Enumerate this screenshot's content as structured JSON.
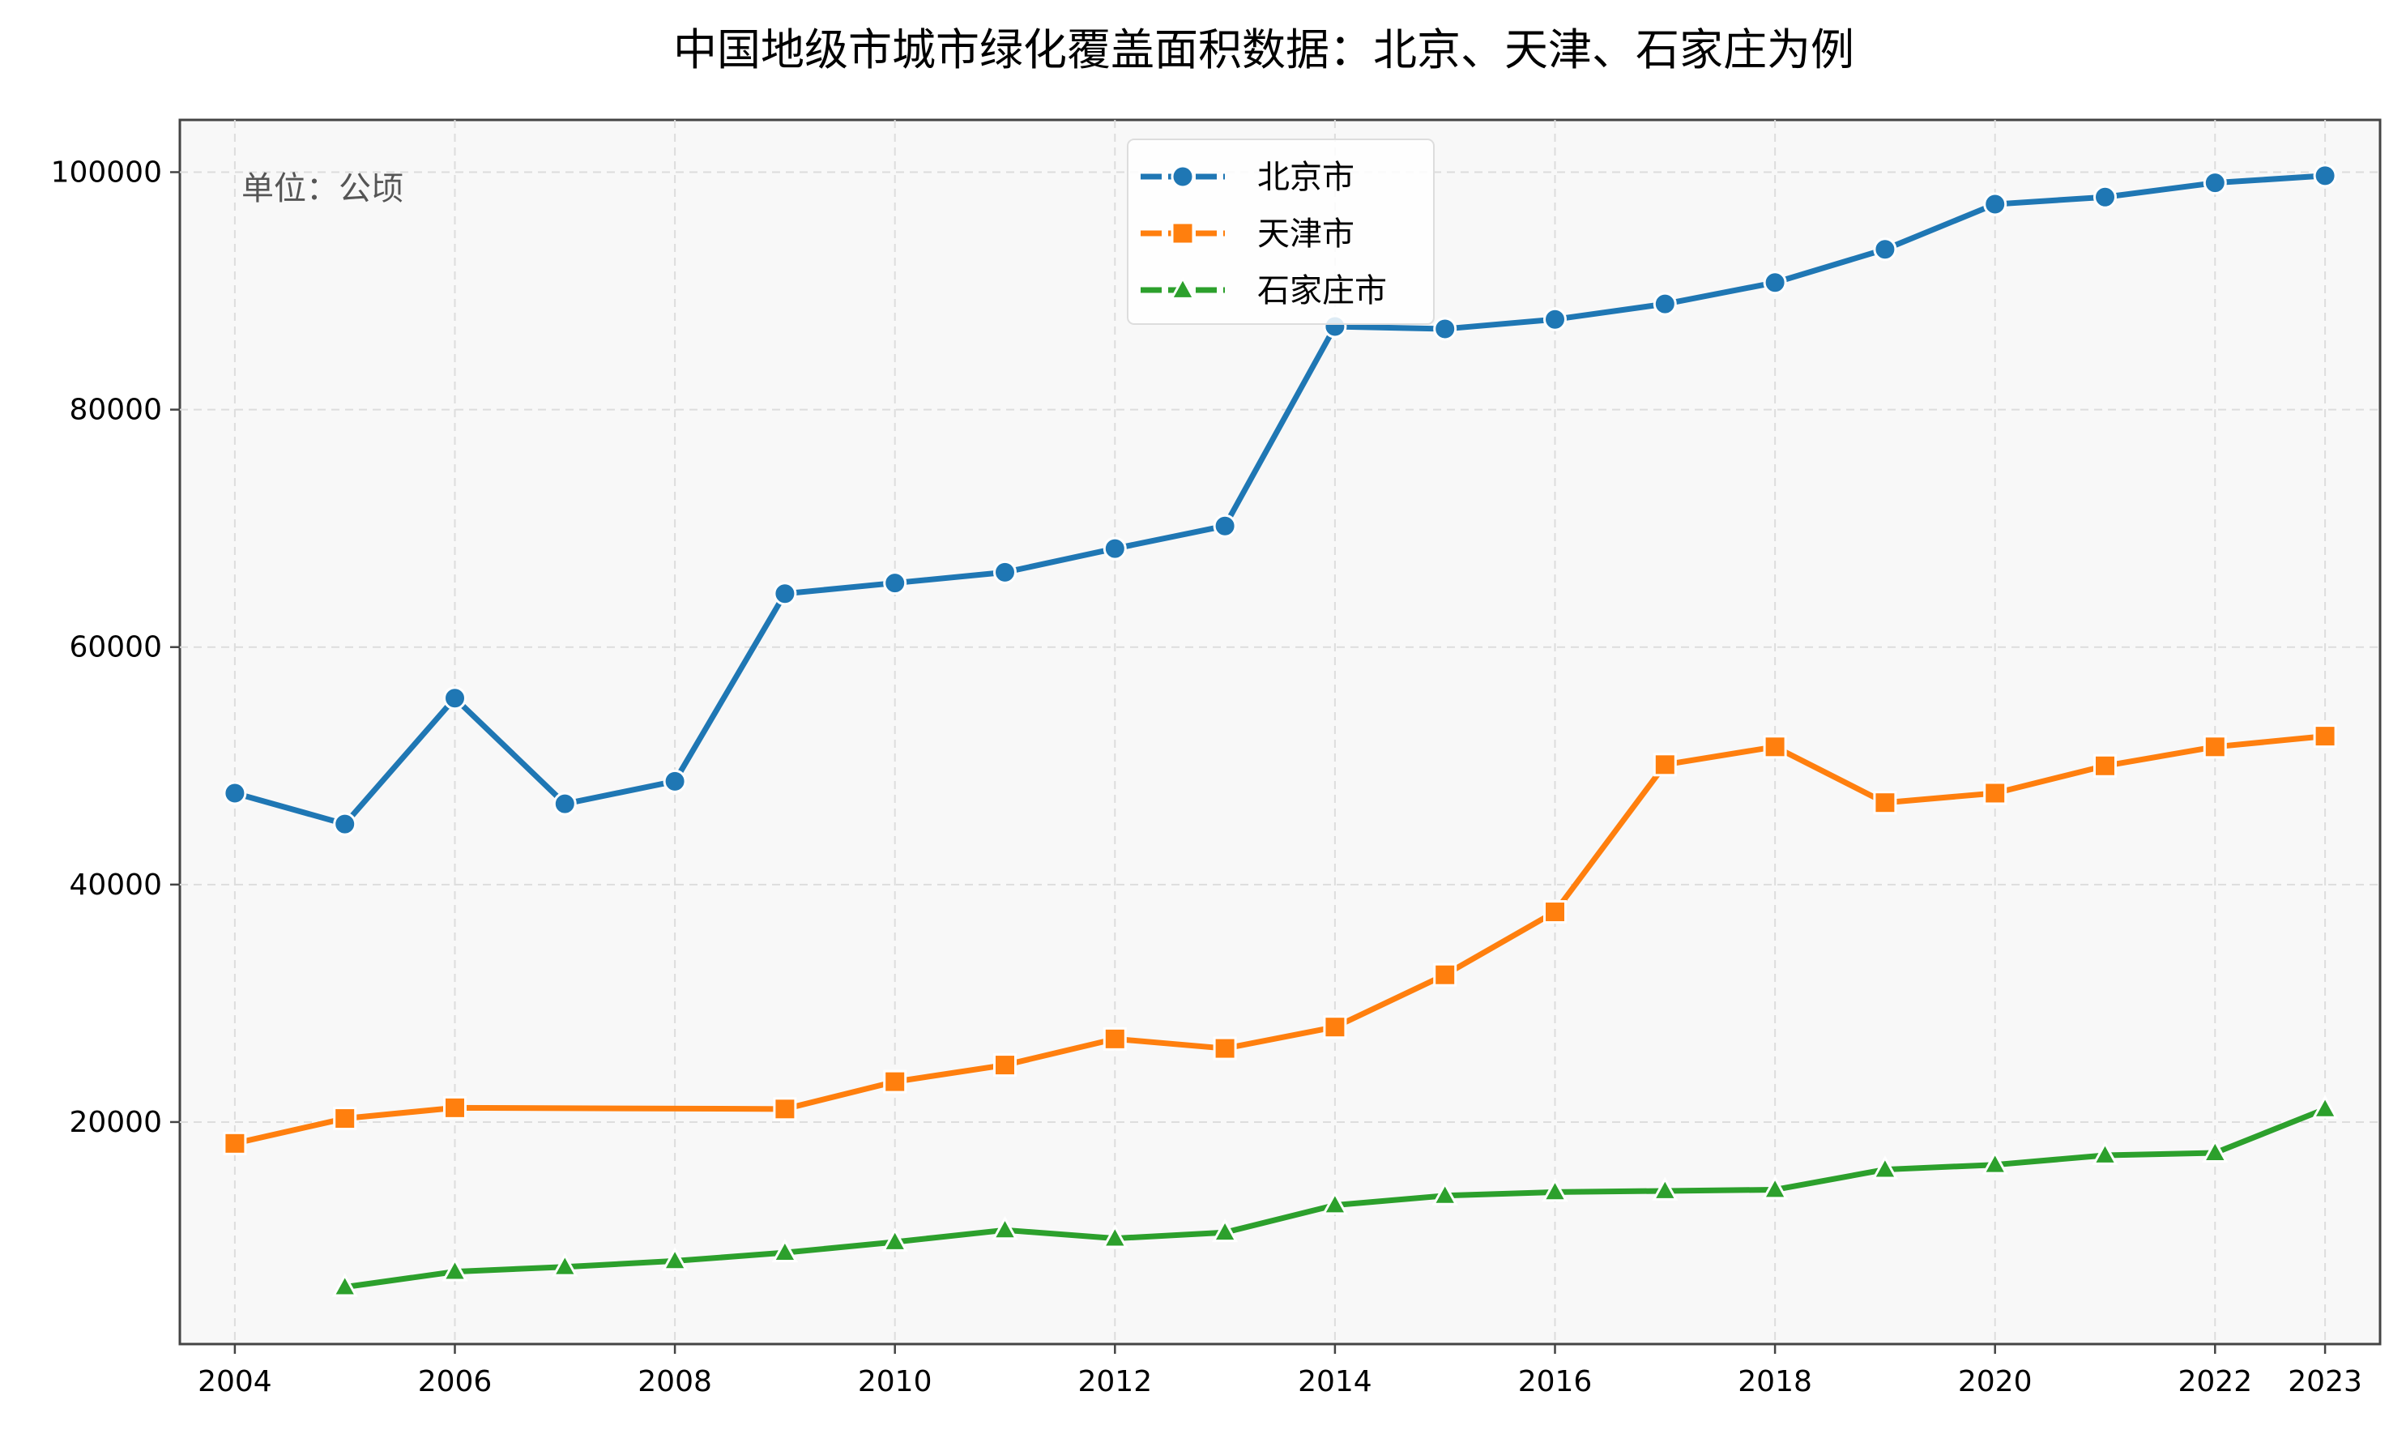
{
  "chart_data": {
    "type": "line",
    "title": "中国地级市城市绿化覆盖面积数据：北京、天津、石家庄为例",
    "annotation": "单位：公顷",
    "xlabel": "",
    "ylabel": "",
    "xlim": [
      2003.5,
      2023.5
    ],
    "ylim": [
      1300,
      104400
    ],
    "x_ticks": [
      2004,
      2006,
      2008,
      2010,
      2012,
      2014,
      2016,
      2018,
      2020,
      2022,
      2023
    ],
    "y_ticks": [
      20000,
      40000,
      60000,
      80000,
      100000
    ],
    "grid": true,
    "legend_position": "top-center",
    "series": [
      {
        "name": "北京市",
        "color": "#1f77b4",
        "marker": "circle",
        "x": [
          2004,
          2005,
          2006,
          2007,
          2008,
          2009,
          2010,
          2011,
          2012,
          2013,
          2014,
          2015,
          2016,
          2017,
          2018,
          2019,
          2020,
          2021,
          2022,
          2023
        ],
        "values": [
          47700,
          45100,
          55700,
          46800,
          48700,
          64500,
          65400,
          66300,
          68300,
          70200,
          87000,
          86800,
          87600,
          88900,
          90700,
          93500,
          97300,
          97900,
          99100,
          99700
        ]
      },
      {
        "name": "天津市",
        "color": "#ff7f0e",
        "marker": "square",
        "x": [
          2004,
          2005,
          2006,
          2009,
          2010,
          2011,
          2012,
          2013,
          2014,
          2015,
          2016,
          2017,
          2018,
          2019,
          2020,
          2021,
          2022,
          2023
        ],
        "values": [
          18200,
          20300,
          21200,
          21100,
          23400,
          24800,
          27000,
          26200,
          28000,
          32400,
          37700,
          50100,
          51600,
          46900,
          47700,
          50000,
          51600,
          52500
        ]
      },
      {
        "name": "石家庄市",
        "color": "#2ca02c",
        "marker": "triangle",
        "x": [
          2005,
          2006,
          2007,
          2008,
          2009,
          2010,
          2011,
          2012,
          2013,
          2014,
          2015,
          2016,
          2017,
          2018,
          2019,
          2020,
          2021,
          2022,
          2023
        ],
        "values": [
          6100,
          7400,
          7800,
          8300,
          9000,
          9900,
          10900,
          10200,
          10700,
          13000,
          13800,
          14100,
          14200,
          14300,
          16000,
          16400,
          17200,
          17400,
          21100
        ]
      }
    ]
  }
}
